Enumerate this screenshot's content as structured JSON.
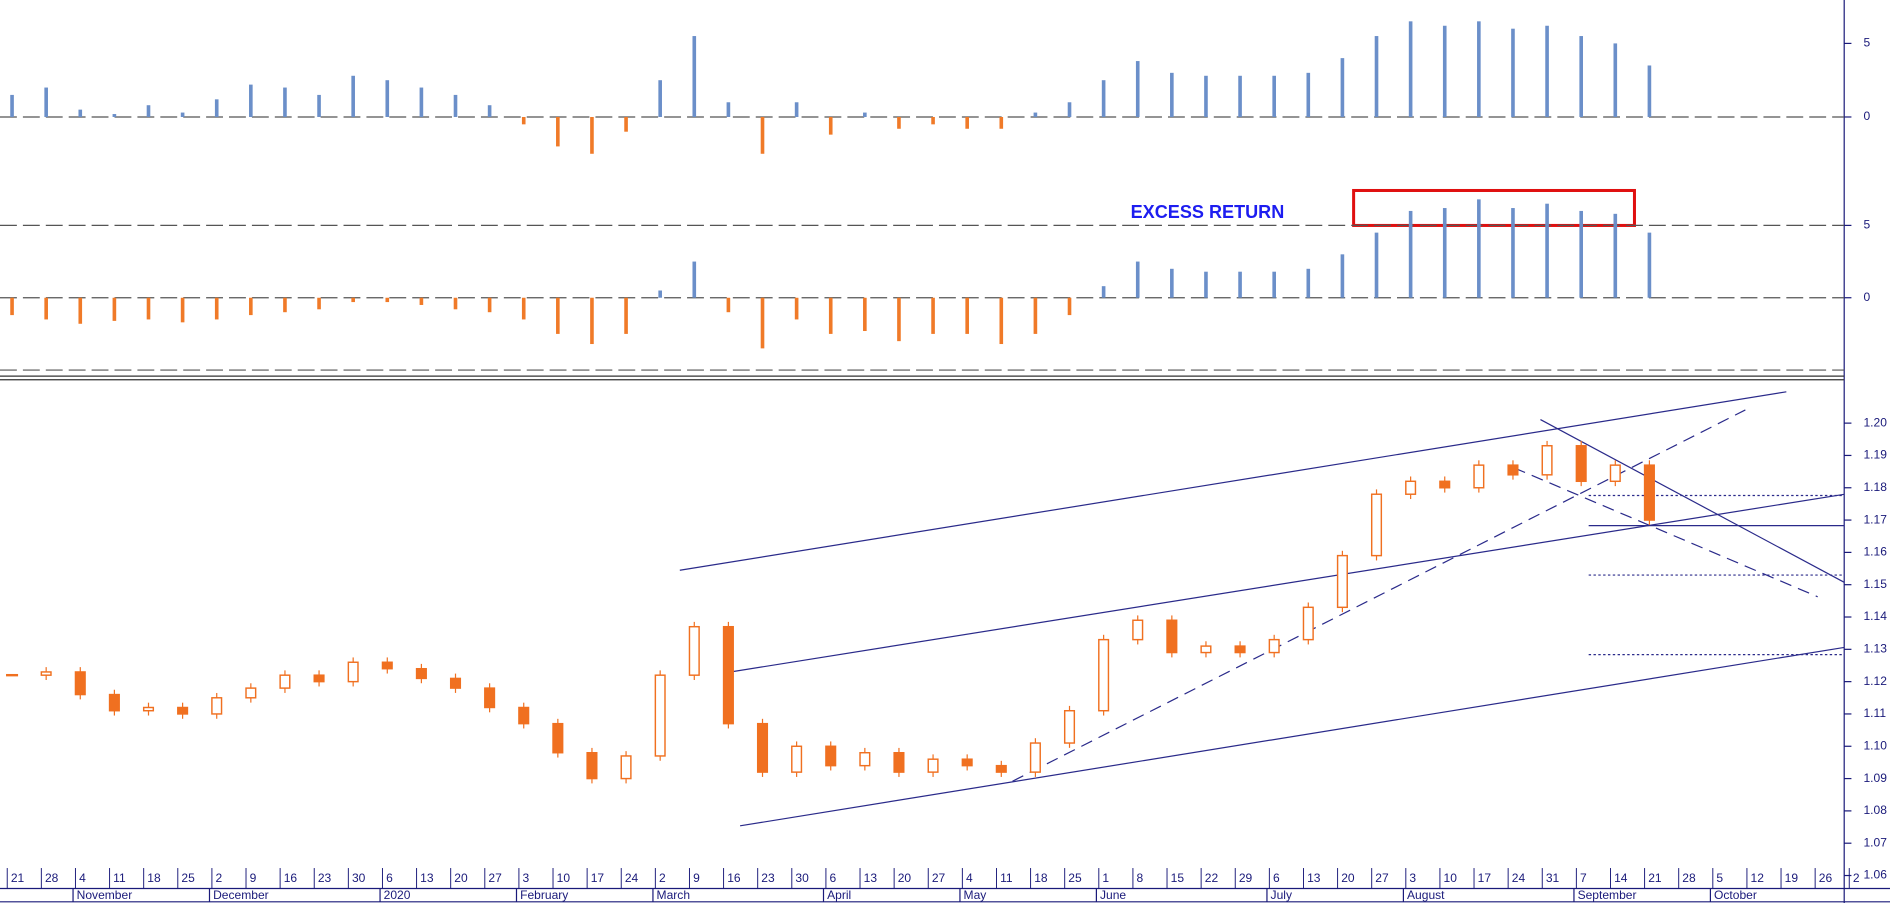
{
  "chart_data": [
    {
      "type": "bar",
      "color_up": "#6b8fc9",
      "color_down": "#f07a28",
      "ylim": [
        -3.93,
        7.95
      ],
      "yticks": [
        0,
        5
      ],
      "hlines": [
        0
      ],
      "values": [
        1.5,
        2,
        0.5,
        0.2,
        0.8,
        0.3,
        1.2,
        2.2,
        2,
        1.5,
        2.8,
        2.5,
        2,
        1.5,
        0.8,
        -0.5,
        -2,
        -2.5,
        -1,
        2.5,
        5.5,
        1,
        -2.5,
        1,
        -1.2,
        0.3,
        -0.8,
        -0.5,
        -0.8,
        -0.8,
        0.3,
        1,
        2.5,
        3.8,
        3,
        2.8,
        2.8,
        2.8,
        3,
        4,
        5.5,
        6.5,
        6.2,
        6.5,
        6,
        6.2,
        5.5,
        5,
        3.5,
        null,
        null,
        null,
        null,
        null,
        null
      ]
    },
    {
      "type": "bar",
      "color_up": "#6b8fc9",
      "color_down": "#f07a28",
      "annotation": "EXCESS RETURN",
      "ylim": [
        -5.42,
        8.08
      ],
      "yticks": [
        0,
        5
      ],
      "hlines": [
        5,
        0,
        -5
      ],
      "values": [
        -1.2,
        -1.5,
        -1.8,
        -1.6,
        -1.5,
        -1.7,
        -1.5,
        -1.2,
        -1,
        -0.8,
        -0.3,
        -0.3,
        -0.5,
        -0.8,
        -1,
        -1.5,
        -2.5,
        -3.2,
        -2.5,
        0.5,
        2.5,
        -1,
        -3.5,
        -1.5,
        -2.5,
        -2.3,
        -3,
        -2.5,
        -2.5,
        -3.2,
        -2.5,
        -1.2,
        0.8,
        2.5,
        2,
        1.8,
        1.8,
        1.8,
        2,
        3,
        4.5,
        6,
        6.2,
        6.8,
        6.2,
        6.5,
        6,
        5.8,
        4.5,
        null,
        null,
        null,
        null,
        null,
        null
      ]
    },
    {
      "type": "candlestick",
      "color": "#f07020",
      "ylim": [
        1.0556,
        1.2123
      ],
      "yticks": [
        1.06,
        1.07,
        1.08,
        1.09,
        {
          "value": 1.1,
          "label": "1.10"
        },
        1.11,
        1.12,
        1.13,
        1.14,
        1.15,
        1.16,
        1.17,
        1.18,
        1.19,
        {
          "value": 1.2,
          "label": "1.20"
        }
      ],
      "categories": [
        "21",
        "28",
        "4",
        "11",
        "18",
        "25",
        "2",
        "9",
        "16",
        "23",
        "30",
        "6",
        "13",
        "20",
        "27",
        "3",
        "10",
        "17",
        "24",
        "2",
        "9",
        "16",
        "23",
        "30",
        "6",
        "13",
        "20",
        "27",
        "4",
        "11",
        "18",
        "25",
        "1",
        "8",
        "15",
        "22",
        "29",
        "6",
        "13",
        "20",
        "27",
        "3",
        "10",
        "17",
        "24",
        "31",
        "7",
        "14",
        "21",
        "28",
        "5",
        "12",
        "19",
        "26",
        "2"
      ],
      "month_ticks": [
        {
          "value": 2,
          "label": "November"
        },
        {
          "value": 6,
          "label": "December"
        },
        {
          "value": 11,
          "label": "2020"
        },
        {
          "value": 15,
          "label": "February"
        },
        {
          "value": 19,
          "label": "March"
        },
        {
          "value": 24,
          "label": "April"
        },
        {
          "value": 28,
          "label": "May"
        },
        {
          "value": 32,
          "label": "June"
        },
        {
          "value": 37,
          "label": "July"
        },
        {
          "value": 41,
          "label": "August"
        },
        {
          "value": 46,
          "label": "September"
        },
        {
          "value": 50,
          "label": "October"
        }
      ],
      "values": [
        1.122,
        1.123,
        1.116,
        1.111,
        1.112,
        1.11,
        1.115,
        1.118,
        1.122,
        1.12,
        1.126,
        1.124,
        1.121,
        1.118,
        1.112,
        1.107,
        1.098,
        1.09,
        1.097,
        1.122,
        1.137,
        1.107,
        1.092,
        1.1,
        1.094,
        1.098,
        1.092,
        1.096,
        1.094,
        1.092,
        1.101,
        1.111,
        1.133,
        1.139,
        1.129,
        1.131,
        1.129,
        1.133,
        1.143,
        1.159,
        1.178,
        1.182,
        1.18,
        1.187,
        1.184,
        1.193,
        1.182,
        1.187,
        1.17,
        null,
        null,
        null,
        null,
        null,
        null
      ]
    }
  ]
}
